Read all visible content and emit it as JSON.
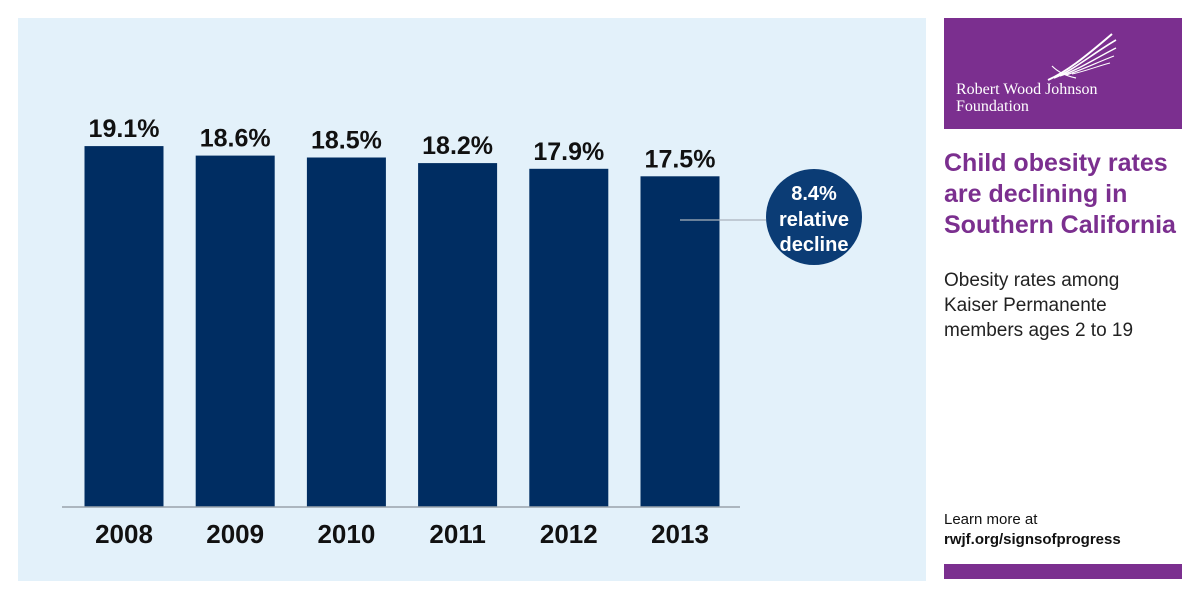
{
  "chart_data": {
    "type": "bar",
    "categories": [
      "2008",
      "2009",
      "2010",
      "2011",
      "2012",
      "2013"
    ],
    "values": [
      19.1,
      18.6,
      18.5,
      18.2,
      17.9,
      17.5
    ],
    "value_labels": [
      "19.1%",
      "18.6%",
      "18.5%",
      "18.2%",
      "17.9%",
      "17.5%"
    ],
    "title": "",
    "xlabel": "",
    "ylabel": "",
    "ylim": [
      0,
      19.9
    ],
    "grid": false,
    "legend": "none",
    "bar_color": "#002d62",
    "background_color": "#e3f1fa",
    "annotation": {
      "value": "8.4%",
      "line1": "relative",
      "line2": "decline",
      "color": "#0b3c75"
    }
  },
  "sidebar": {
    "logo": {
      "icon": "feather-wing-icon",
      "line1": "Robert Wood Johnson",
      "line2": "Foundation",
      "color": "#7b2f8f"
    },
    "headline_lines": [
      "Child obesity rates",
      "are declining in",
      "Southern California"
    ],
    "subtitle_lines": [
      "Obesity rates among",
      "Kaiser Permanente",
      "members ages 2 to 19"
    ],
    "learn_more": "Learn more at",
    "learn_more_url": "rwjf.org/signsofprogress",
    "accent_color": "#7b2f8f"
  }
}
